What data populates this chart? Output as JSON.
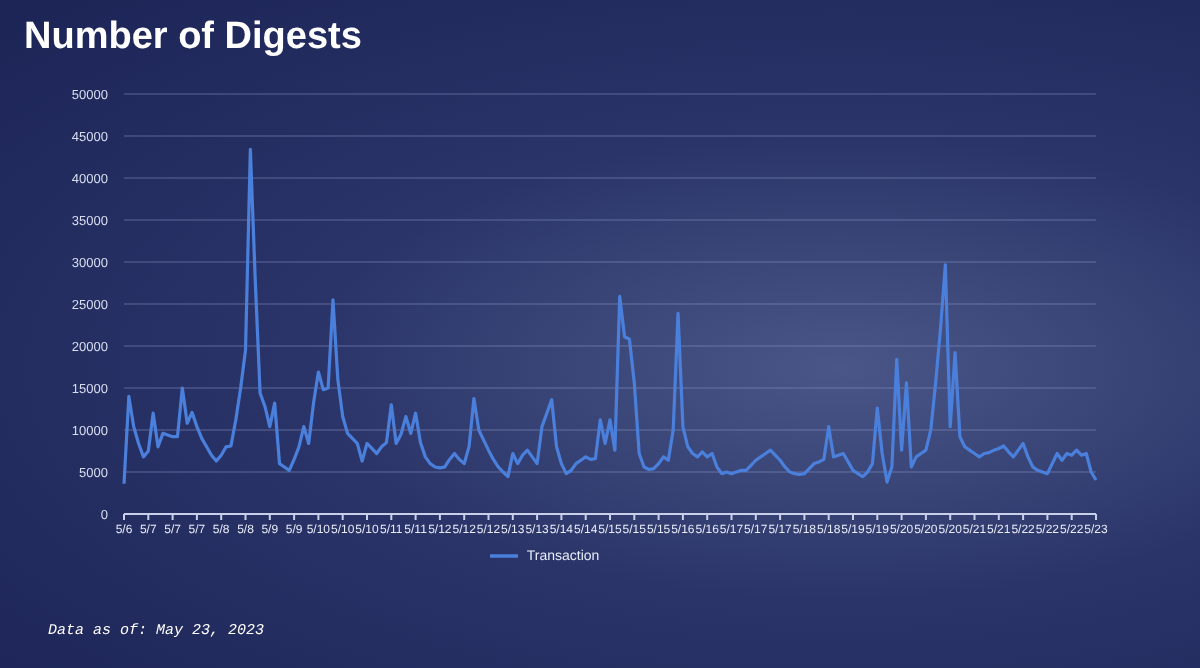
{
  "chart_data": {
    "type": "line",
    "title": "Number of Digests",
    "categories": [
      "5/6",
      null,
      null,
      null,
      null,
      "5/7",
      null,
      null,
      null,
      null,
      "5/7",
      null,
      null,
      null,
      null,
      "5/7",
      null,
      null,
      null,
      null,
      "5/8",
      null,
      null,
      null,
      null,
      "5/8",
      null,
      null,
      null,
      null,
      "5/9",
      null,
      null,
      null,
      null,
      "5/9",
      null,
      null,
      null,
      null,
      "5/10",
      null,
      null,
      null,
      null,
      "5/10",
      null,
      null,
      null,
      null,
      "5/10",
      null,
      null,
      null,
      null,
      "5/11",
      null,
      null,
      null,
      null,
      "5/11",
      null,
      null,
      null,
      null,
      "5/12",
      null,
      null,
      null,
      null,
      "5/12",
      null,
      null,
      null,
      null,
      "5/12",
      null,
      null,
      null,
      null,
      "5/13",
      null,
      null,
      null,
      null,
      "5/13",
      null,
      null,
      null,
      null,
      "5/14",
      null,
      null,
      null,
      null,
      "5/14",
      null,
      null,
      null,
      null,
      "5/15",
      null,
      null,
      null,
      null,
      "5/15",
      null,
      null,
      null,
      null,
      "5/15",
      null,
      null,
      null,
      null,
      "5/16",
      null,
      null,
      null,
      null,
      "5/16",
      null,
      null,
      null,
      null,
      "5/17",
      null,
      null,
      null,
      null,
      "5/17",
      null,
      null,
      null,
      null,
      "5/17",
      null,
      null,
      null,
      null,
      "5/18",
      null,
      null,
      null,
      null,
      "5/18",
      null,
      null,
      null,
      null,
      "5/19",
      null,
      null,
      null,
      null,
      "5/19",
      null,
      null,
      null,
      null,
      "5/20",
      null,
      null,
      null,
      null,
      "5/20",
      null,
      null,
      null,
      null,
      "5/20",
      null,
      null,
      null,
      null,
      "5/21",
      null,
      null,
      null,
      null,
      "5/21",
      null,
      null,
      null,
      null,
      "5/22",
      null,
      null,
      null,
      null,
      "5/22",
      null,
      null,
      null,
      null,
      "5/22",
      null,
      null,
      null,
      null,
      "5/23"
    ],
    "series": [
      {
        "name": "Transaction",
        "color": "#4a80dc",
        "values": [
          3600,
          14000,
          10400,
          8400,
          6800,
          7500,
          12000,
          8000,
          9600,
          9400,
          9200,
          9200,
          15000,
          10800,
          12100,
          10400,
          9000,
          8000,
          7000,
          6300,
          7000,
          8000,
          8100,
          11200,
          15000,
          19500,
          43400,
          27900,
          14400,
          12800,
          10400,
          13200,
          6000,
          5600,
          5200,
          6500,
          8000,
          10400,
          8400,
          13200,
          16900,
          14800,
          15000,
          25500,
          16000,
          11600,
          9600,
          9000,
          8400,
          6300,
          8400,
          7800,
          7200,
          8000,
          8500,
          13000,
          8400,
          9500,
          11600,
          9600,
          12000,
          8500,
          6800,
          6000,
          5600,
          5500,
          5600,
          6500,
          7200,
          6500,
          6000,
          8000,
          13750,
          10000,
          8800,
          7600,
          6500,
          5600,
          5000,
          4450,
          7200,
          6000,
          7000,
          7600,
          6800,
          6000,
          10400,
          12000,
          13600,
          8000,
          6000,
          4800,
          5200,
          6000,
          6400,
          6800,
          6500,
          6600,
          11200,
          8400,
          11200,
          7600,
          25900,
          21100,
          20800,
          15600,
          7200,
          5600,
          5300,
          5400,
          6000,
          6800,
          6400,
          10000,
          23900,
          10400,
          8000,
          7200,
          6800,
          7400,
          6800,
          7200,
          5600,
          4800,
          5000,
          4800,
          5000,
          5200,
          5200,
          5800,
          6400,
          6800,
          7200,
          7600,
          7000,
          6400,
          5600,
          5000,
          4800,
          4700,
          4800,
          5400,
          6000,
          6200,
          6500,
          10400,
          6800,
          7000,
          7200,
          6200,
          5200,
          4800,
          4450,
          5000,
          6000,
          12600,
          7200,
          3800,
          5600,
          18400,
          7600,
          15600,
          5600,
          6800,
          7200,
          7600,
          10000,
          15600,
          22000,
          29650,
          10400,
          19200,
          9200,
          8000,
          7600,
          7200,
          6800,
          7200,
          7300,
          7600,
          7800,
          8100,
          7400,
          6800,
          7600,
          8400,
          6800,
          5600,
          5200,
          5000,
          4800,
          6000,
          7200,
          6400,
          7200,
          7000,
          7600,
          7000,
          7200,
          5000,
          4050
        ]
      }
    ],
    "ylim": [
      0,
      50000
    ],
    "yticks": [
      0,
      5000,
      10000,
      15000,
      20000,
      25000,
      30000,
      35000,
      40000,
      45000,
      50000
    ],
    "grid": "y",
    "legend": "bottom",
    "marker": "none",
    "line_style": "solid",
    "annotations": [
      "Data as of: May 23, 2023"
    ]
  }
}
